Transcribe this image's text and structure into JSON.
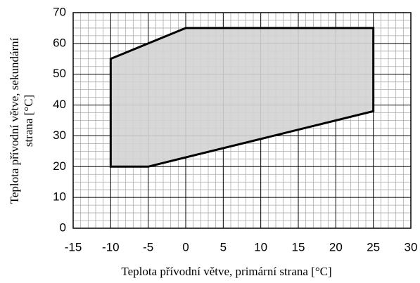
{
  "chart_data": {
    "type": "area",
    "x_label": "Teplota přívodní větve, primární strana [°C]",
    "y_label": [
      "Teplota přívodní větve, sekundární",
      "strana [°C]"
    ],
    "x": [
      -10,
      -10,
      0,
      25,
      25,
      -5,
      -10
    ],
    "values": [
      20,
      55,
      65,
      65,
      38,
      20,
      20
    ],
    "color": "#d3d3d3",
    "line_color": "#000000",
    "xlim": [
      -15,
      30
    ],
    "xticks": [
      -15,
      -10,
      -5,
      0,
      5,
      10,
      15,
      20,
      25,
      30
    ],
    "ylim": [
      0,
      70
    ],
    "yticks": [
      0,
      10,
      20,
      30,
      40,
      50,
      60,
      70
    ],
    "grid": true
  }
}
